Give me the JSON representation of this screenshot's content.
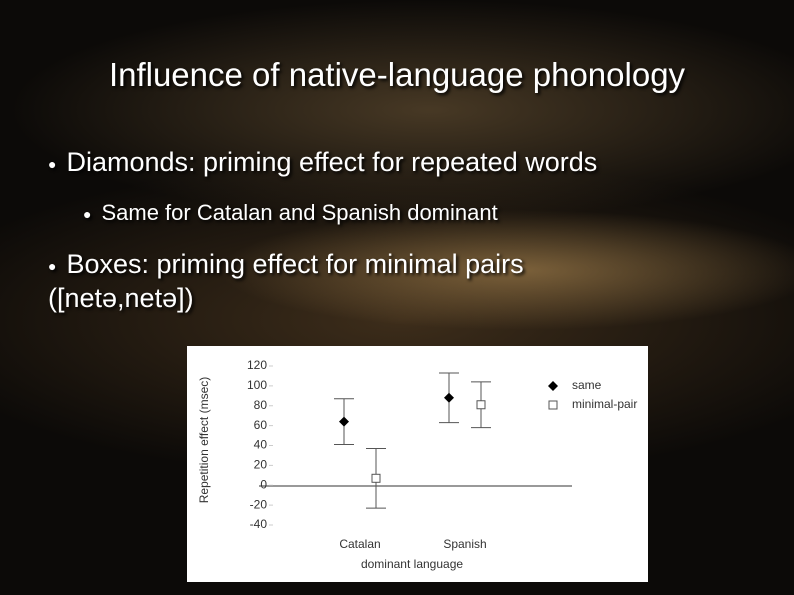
{
  "title": "Influence of native-language phonology",
  "bullets": [
    "Diamonds: priming effect for repeated words",
    "Same for Catalan and Spanish dominant",
    "Boxes: priming effect for minimal pairs ([netə,netə])"
  ],
  "chart_data": {
    "type": "errorbar",
    "x_label": "dominant language",
    "y_label": "Repetition effect (msec)",
    "categories": [
      "Catalan",
      "Spanish"
    ],
    "series": [
      {
        "name": "same",
        "color": "#000000",
        "marker": "diamond",
        "values": [
          64,
          88
        ],
        "errors": [
          23,
          25
        ]
      },
      {
        "name": "minimal-pair",
        "color": "#555555",
        "marker": "square",
        "values": [
          7,
          81
        ],
        "errors": [
          30,
          23
        ]
      }
    ],
    "ylim": [
      -40,
      120
    ],
    "yticks": [
      -40,
      -20,
      0,
      20,
      40,
      60,
      80,
      100,
      120
    ],
    "legend": "upper right"
  }
}
